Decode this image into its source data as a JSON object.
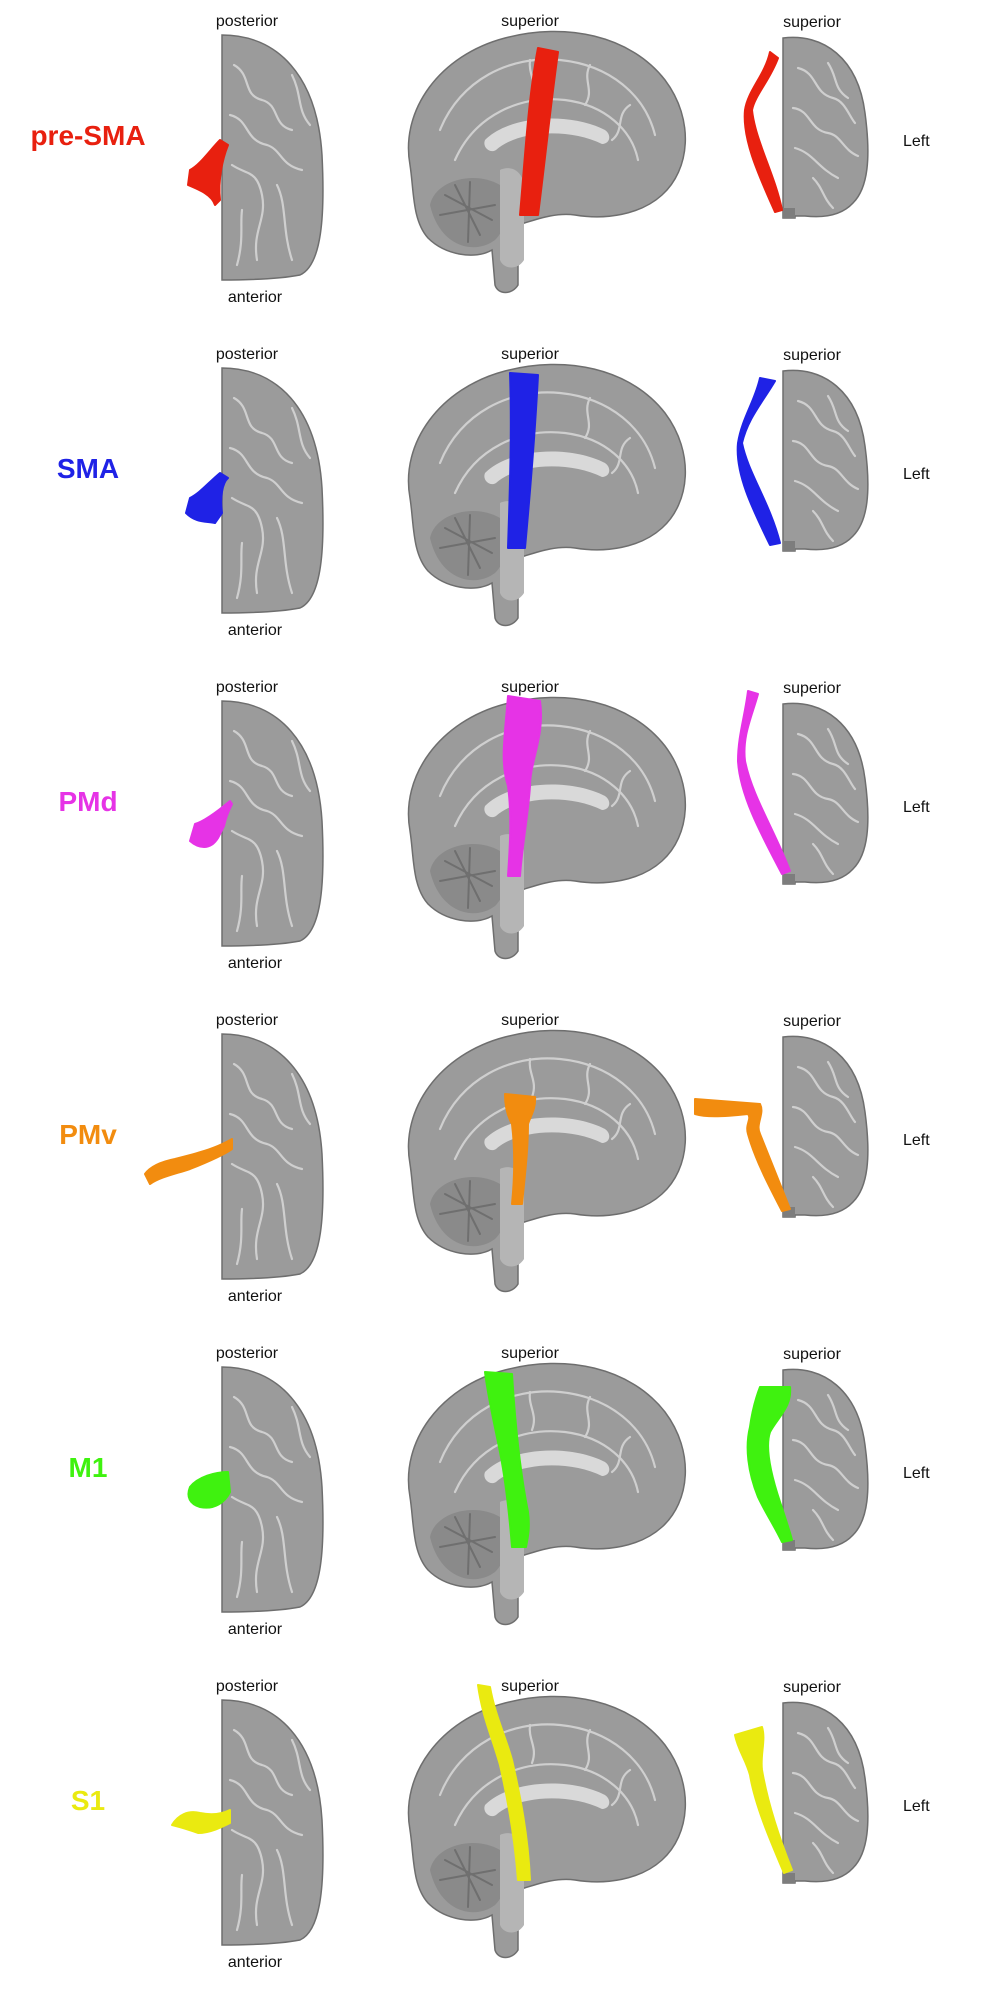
{
  "view_labels": {
    "axial_top": "posterior",
    "axial_bottom": "anterior",
    "sagittal_top": "superior",
    "coronal_top": "superior",
    "coronal_side": "Left"
  },
  "rows": [
    {
      "id": "pre-sma",
      "label": "pre-SMA",
      "color": "#e8200f"
    },
    {
      "id": "sma",
      "label": "SMA",
      "color": "#1f22e6"
    },
    {
      "id": "pmd",
      "label": "PMd",
      "color": "#e633e6"
    },
    {
      "id": "pmv",
      "label": "PMv",
      "color": "#f28c0f"
    },
    {
      "id": "m1",
      "label": "M1",
      "color": "#3ff20f"
    },
    {
      "id": "s1",
      "label": "S1",
      "color": "#eaea10"
    }
  ]
}
